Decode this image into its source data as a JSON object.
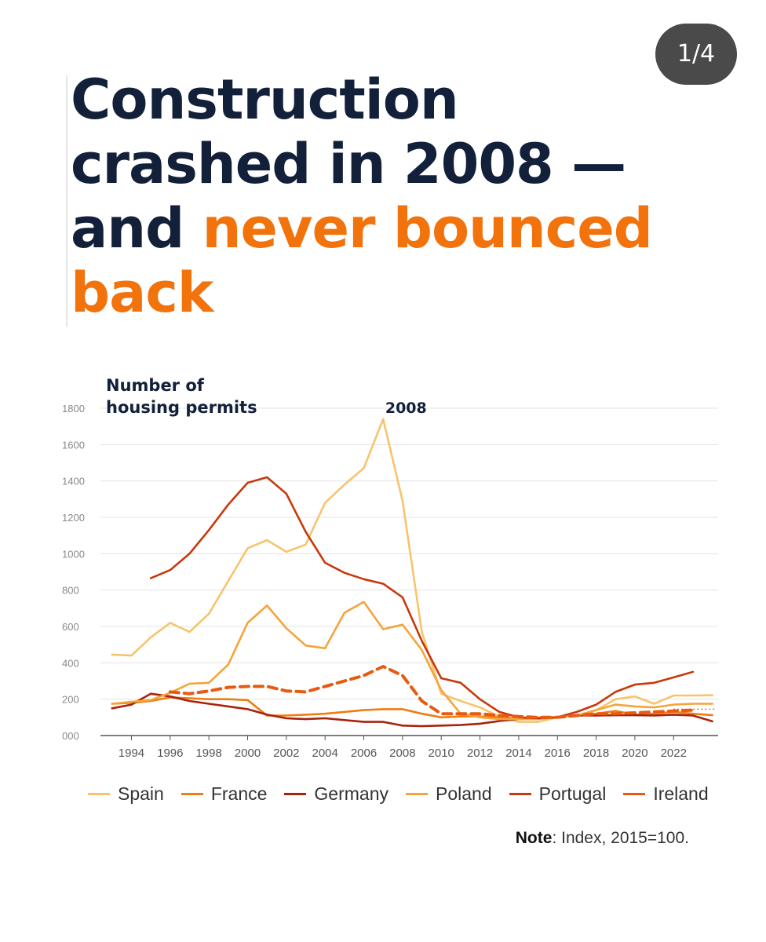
{
  "pager": {
    "label": "1/4"
  },
  "headline": {
    "line1": "Construction",
    "line2": "crashed in 2008 —",
    "line3_plain": "and ",
    "line3_highlight": "never bounced",
    "line4_highlight": "back"
  },
  "colors": {
    "headline_text": "#12203a",
    "highlight": "#f2720c",
    "grid": "#e3e3e3",
    "axis": "#555555"
  },
  "note": {
    "label": "Note",
    "text": ": Index, 2015=100."
  },
  "chart_data": {
    "type": "line",
    "title": "Number of housing permits",
    "title_lines": [
      "Number of",
      "housing permits"
    ],
    "annotation": {
      "text": "2008",
      "x": 2008,
      "y": 1740
    },
    "xlim": [
      1992.4,
      2024.3
    ],
    "ylim": [
      0,
      1800
    ],
    "y_ticks": [
      0,
      200,
      400,
      600,
      800,
      1000,
      1200,
      1400,
      1600,
      1800
    ],
    "y_tick_labels": [
      "000",
      "200",
      "400",
      "600",
      "800",
      "1000",
      "1200",
      "1400",
      "1600",
      "1800"
    ],
    "x_ticks": [
      1994,
      1996,
      1998,
      2000,
      2002,
      2004,
      2006,
      2008,
      2010,
      2012,
      2014,
      2016,
      2018,
      2020,
      2022
    ],
    "x_tick_labels": [
      "1994",
      "1996",
      "1998",
      "2000",
      "2002",
      "2004",
      "2006",
      "2008",
      "2010",
      "2012",
      "2014",
      "2016",
      "2018",
      "2020",
      "2022"
    ],
    "grid": true,
    "reference_line": {
      "y": 145,
      "from_x": 2022,
      "to_x": 2024.2,
      "style": "dotted"
    },
    "series": [
      {
        "name": "Spain",
        "color": "#f7c46e",
        "width": 2.6,
        "dashed": false,
        "x": [
          1993,
          1994,
          1995,
          1996,
          1997,
          1998,
          1999,
          2000,
          2001,
          2002,
          2003,
          2004,
          2005,
          2006,
          2007,
          2008,
          2009,
          2010,
          2011,
          2012,
          2013,
          2014,
          2015,
          2016,
          2017,
          2018,
          2019,
          2020,
          2021,
          2022,
          2023,
          2024
        ],
        "y": [
          445,
          440,
          540,
          620,
          570,
          670,
          850,
          1030,
          1075,
          1010,
          1050,
          1280,
          1380,
          1470,
          1740,
          1290,
          570,
          230,
          190,
          155,
          105,
          75,
          75,
          100,
          110,
          140,
          200,
          215,
          175,
          220,
          220,
          222
        ]
      },
      {
        "name": "France",
        "color": "#f07c12",
        "width": 2.6,
        "dashed": false,
        "x": [
          1993,
          1994,
          1995,
          1996,
          1997,
          1998,
          1999,
          2000,
          2001,
          2002,
          2003,
          2004,
          2005,
          2006,
          2007,
          2008,
          2009,
          2010,
          2011,
          2012,
          2013,
          2014,
          2015,
          2016,
          2017,
          2018,
          2019,
          2020,
          2021,
          2022,
          2023,
          2024
        ],
        "y": [
          175,
          180,
          190,
          210,
          205,
          200,
          200,
          195,
          110,
          110,
          115,
          120,
          130,
          140,
          145,
          145,
          120,
          100,
          105,
          105,
          100,
          95,
          98,
          100,
          110,
          120,
          135,
          115,
          120,
          130,
          120,
          112
        ]
      },
      {
        "name": "Germany",
        "color": "#a8230b",
        "width": 2.6,
        "dashed": false,
        "x": [
          1993,
          1994,
          1995,
          1996,
          1997,
          1998,
          1999,
          2000,
          2001,
          2002,
          2003,
          2004,
          2005,
          2006,
          2007,
          2008,
          2009,
          2010,
          2011,
          2012,
          2013,
          2014,
          2015,
          2016,
          2017,
          2018,
          2019,
          2020,
          2021,
          2022,
          2023,
          2024
        ],
        "y": [
          150,
          170,
          230,
          215,
          190,
          175,
          160,
          145,
          115,
          95,
          90,
          95,
          85,
          75,
          75,
          55,
          52,
          55,
          58,
          65,
          80,
          90,
          95,
          100,
          110,
          110,
          112,
          112,
          110,
          115,
          110,
          78
        ]
      },
      {
        "name": "Poland",
        "color": "#f4a43a",
        "width": 2.6,
        "dashed": false,
        "x": [
          1993,
          1994,
          1995,
          1996,
          1997,
          1998,
          1999,
          2000,
          2001,
          2002,
          2003,
          2004,
          2005,
          2006,
          2007,
          2008,
          2009,
          2010,
          2011,
          2012,
          2013,
          2014,
          2015,
          2016,
          2017,
          2018,
          2019,
          2020,
          2021,
          2022,
          2023,
          2024
        ],
        "y": [
          175,
          185,
          195,
          235,
          285,
          290,
          390,
          620,
          715,
          590,
          495,
          480,
          675,
          735,
          585,
          610,
          470,
          250,
          120,
          100,
          90,
          90,
          90,
          100,
          110,
          140,
          170,
          160,
          155,
          170,
          175,
          175
        ]
      },
      {
        "name": "Portugal",
        "color": "#c8390c",
        "width": 2.6,
        "dashed": false,
        "x": [
          1995,
          1996,
          1997,
          1998,
          1999,
          2000,
          2001,
          2002,
          2003,
          2004,
          2005,
          2006,
          2007,
          2008,
          2009,
          2010,
          2011,
          2012,
          2013,
          2014,
          2015,
          2016,
          2017,
          2018,
          2019,
          2020,
          2021,
          2022,
          2023
        ],
        "y": [
          865,
          910,
          1000,
          1130,
          1270,
          1390,
          1420,
          1330,
          1120,
          950,
          895,
          860,
          835,
          760,
          520,
          315,
          290,
          200,
          130,
          100,
          95,
          100,
          130,
          170,
          240,
          280,
          290,
          320,
          350
        ]
      },
      {
        "name": "Ireland",
        "color": "#e85a10",
        "width": 4,
        "dashed": true,
        "x": [
          1996,
          1997,
          1998,
          1999,
          2000,
          2001,
          2002,
          2003,
          2004,
          2005,
          2006,
          2007,
          2008,
          2009,
          2010,
          2011,
          2012,
          2013,
          2014,
          2015,
          2016,
          2017,
          2018,
          2019,
          2020,
          2021,
          2022,
          2023
        ],
        "y": [
          240,
          230,
          245,
          265,
          270,
          270,
          245,
          240,
          270,
          300,
          330,
          380,
          330,
          190,
          120,
          120,
          120,
          110,
          105,
          100,
          100,
          110,
          120,
          120,
          125,
          130,
          135,
          140
        ]
      }
    ]
  }
}
